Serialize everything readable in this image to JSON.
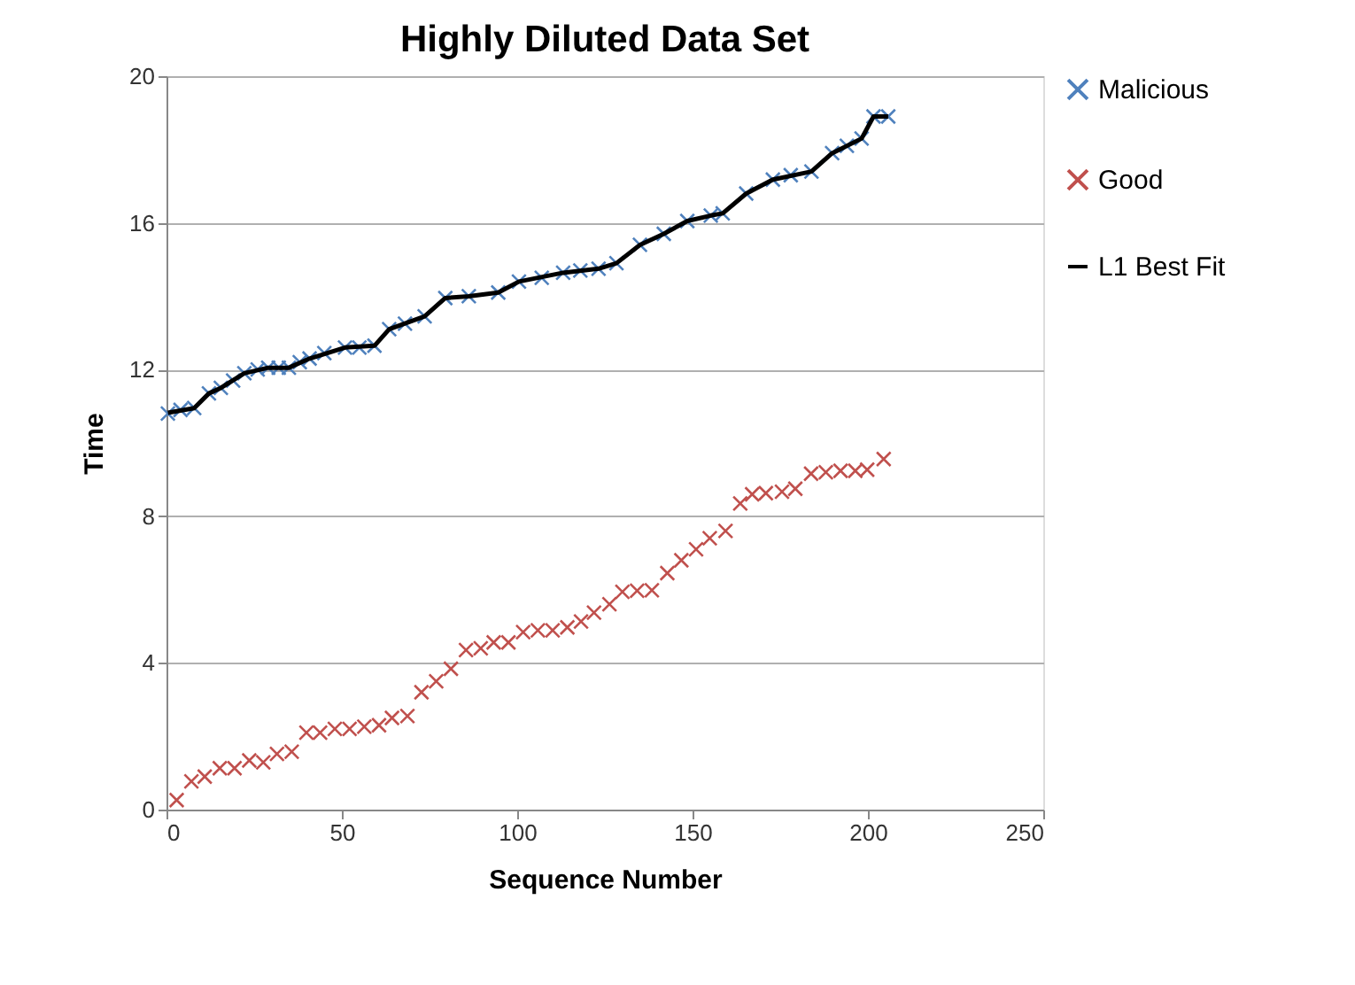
{
  "chart_data": {
    "type": "scatter",
    "title": "Highly Diluted Data Set",
    "xlabel": "Sequence Number",
    "ylabel": "Time",
    "xlim": [
      0,
      250
    ],
    "xticks": [
      0,
      50,
      100,
      150,
      200,
      250
    ],
    "ylim": [
      0,
      20
    ],
    "yticks": [
      0,
      4,
      8,
      12,
      16,
      20
    ],
    "grid": "y",
    "legend": "right",
    "series": [
      {
        "name": "Malicious",
        "marker": "cross",
        "color": "#4f81bd",
        "x": [
          0.4,
          4,
          7.9,
          12.1,
          15.5,
          19,
          22.2,
          26,
          29,
          32,
          34.9,
          38,
          40.8,
          45,
          50.9,
          55,
          59.3,
          63.5,
          68,
          73.6,
          79.5,
          86.2,
          94.6,
          100.5,
          107,
          113.1,
          118,
          123.2,
          128.3,
          135,
          141.8,
          148.5,
          155.2,
          158.6,
          165.3,
          172.9,
          178,
          183.9,
          189.8,
          194,
          198.2,
          201.6,
          205.8
        ],
        "values": [
          10.8,
          10.9,
          10.95,
          11.35,
          11.5,
          11.7,
          11.9,
          12.0,
          12.05,
          12.05,
          12.05,
          12.2,
          12.3,
          12.45,
          12.6,
          12.6,
          12.65,
          13.1,
          13.25,
          13.45,
          13.95,
          14.0,
          14.1,
          14.4,
          14.5,
          14.64,
          14.7,
          14.75,
          14.9,
          15.4,
          15.7,
          16.05,
          16.2,
          16.26,
          16.8,
          17.18,
          17.3,
          17.4,
          17.9,
          18.1,
          18.3,
          18.9,
          18.9
        ]
      },
      {
        "name": "Good",
        "marker": "cross",
        "color": "#c0504d",
        "x": [
          2.9,
          7.1,
          10.9,
          15.2,
          19.4,
          23.6,
          27.6,
          31.5,
          35.7,
          39.9,
          43.8,
          48,
          52.2,
          56.4,
          60.6,
          64.3,
          68.7,
          72.7,
          76.9,
          81.1,
          85.4,
          89.6,
          93.3,
          97.5,
          101.7,
          105.9,
          110.1,
          114.3,
          118.2,
          121.9,
          126.3,
          130,
          134.2,
          138.4,
          142.8,
          146.8,
          151,
          154.9,
          159.4,
          163.6,
          167,
          170.9,
          175.5,
          179.3,
          183.8,
          188,
          192.2,
          196.4,
          199.8,
          204.5
        ],
        "values": [
          0.26,
          0.77,
          0.9,
          1.13,
          1.13,
          1.34,
          1.29,
          1.52,
          1.58,
          2.1,
          2.1,
          2.2,
          2.2,
          2.26,
          2.3,
          2.5,
          2.55,
          3.2,
          3.5,
          3.84,
          4.35,
          4.4,
          4.56,
          4.56,
          4.84,
          4.89,
          4.89,
          4.97,
          5.13,
          5.37,
          5.6,
          5.94,
          5.97,
          5.98,
          6.45,
          6.8,
          7.1,
          7.4,
          7.6,
          8.35,
          8.6,
          8.63,
          8.67,
          8.75,
          9.16,
          9.2,
          9.24,
          9.24,
          9.27,
          9.56
        ]
      },
      {
        "name": "L1 Best Fit",
        "type": "line",
        "line_style": "solid",
        "color": "#000000",
        "x": [
          0.4,
          7.9,
          12.1,
          15.5,
          22.2,
          29,
          34.9,
          40.8,
          50.9,
          59.3,
          63.5,
          73.6,
          79.5,
          86.2,
          94.6,
          100.5,
          113.1,
          123.2,
          128.3,
          135,
          141.8,
          148.5,
          155.2,
          158.6,
          165.3,
          172.9,
          183.9,
          189.8,
          198.2,
          201.6,
          205.8
        ],
        "values": [
          10.82,
          10.95,
          11.35,
          11.5,
          11.9,
          12.05,
          12.05,
          12.3,
          12.6,
          12.65,
          13.1,
          13.45,
          13.95,
          14.0,
          14.1,
          14.4,
          14.64,
          14.75,
          14.9,
          15.4,
          15.7,
          16.05,
          16.2,
          16.26,
          16.8,
          17.18,
          17.4,
          17.9,
          18.3,
          18.9,
          18.9
        ]
      }
    ]
  }
}
